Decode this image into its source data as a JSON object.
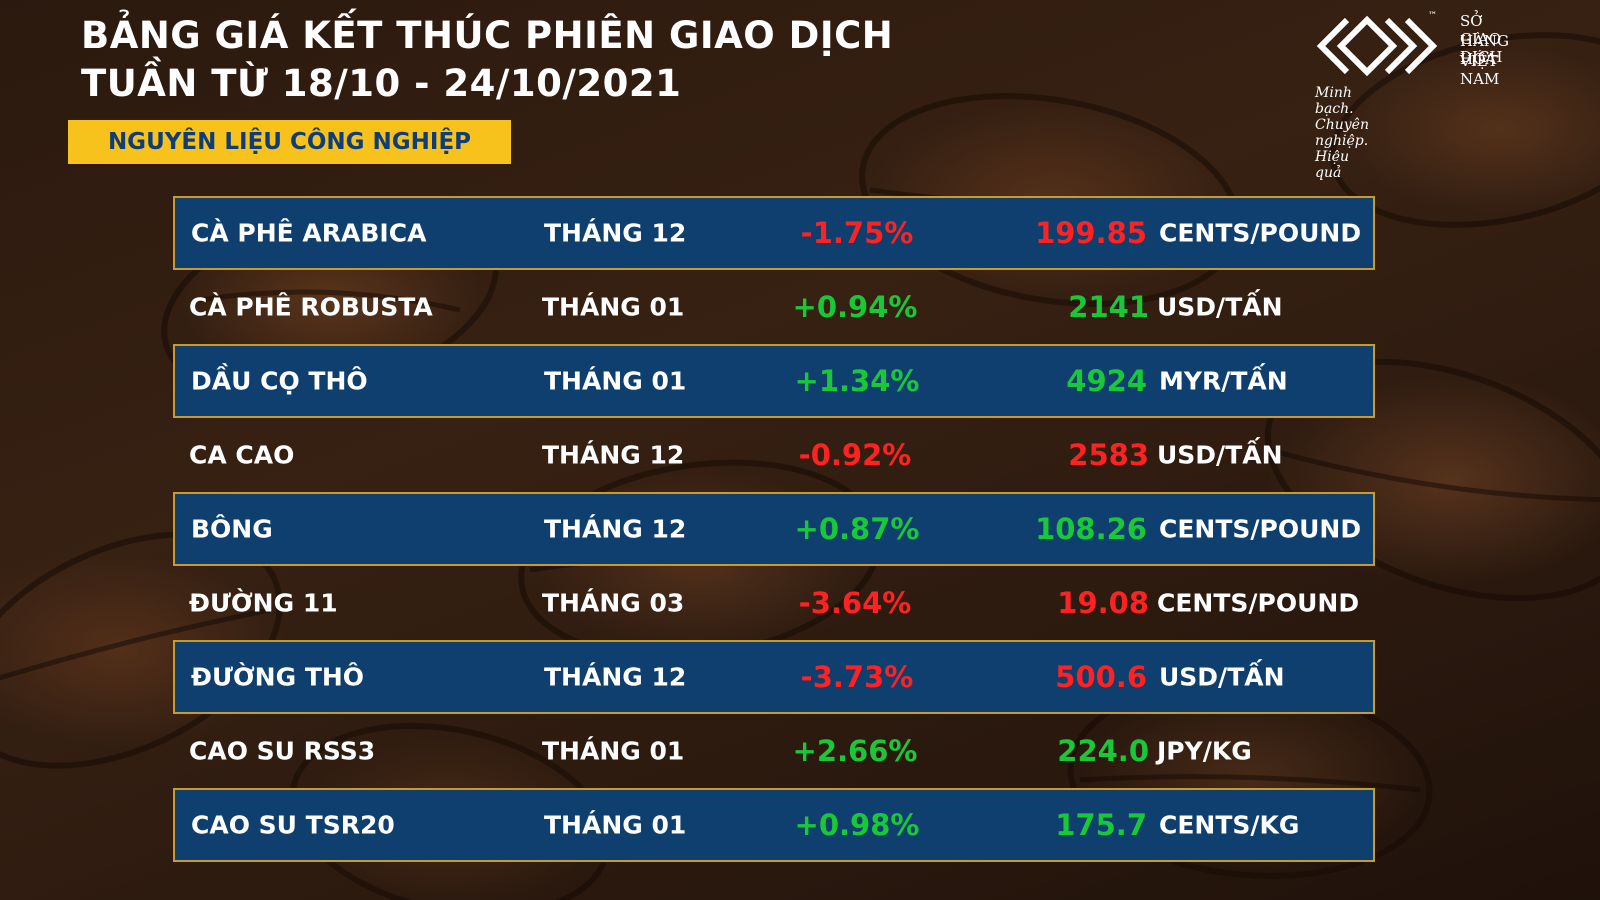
{
  "header": {
    "title_line1": "BẢNG GIÁ KẾT THÚC PHIÊN GIAO DỊCH",
    "title_line2": "TUẦN TỪ 18/10 - 24/10/2021",
    "category": "NGUYÊN LIỆU CÔNG NGHIỆP"
  },
  "logo": {
    "line1": "SỞ GIAO DỊCH",
    "line2": "HÀNG HÓA",
    "line3": "VIỆT NAM",
    "trademark": "™",
    "tagline": "Minh bạch. Chuyên nghiệp. Hiệu quả"
  },
  "table": {
    "rows": [
      [
        "CÀ PHÊ ARABICA",
        "THÁNG 12",
        "-1.75%",
        "199.85",
        "CENTS/POUND"
      ],
      [
        "CÀ PHÊ ROBUSTA",
        "THÁNG 01",
        "+0.94%",
        "2141",
        "USD/TẤN"
      ],
      [
        "DẦU CỌ THÔ",
        "THÁNG 01",
        "+1.34%",
        "4924",
        "MYR/TẤN"
      ],
      [
        "CA CAO",
        "THÁNG 12",
        "-0.92%",
        "2583",
        "USD/TẤN"
      ],
      [
        "BÔNG",
        "THÁNG 12",
        "+0.87%",
        "108.26",
        "CENTS/POUND"
      ],
      [
        "ĐƯỜNG 11",
        "THÁNG 03",
        "-3.64%",
        "19.08",
        "CENTS/POUND"
      ],
      [
        "ĐƯỜNG THÔ",
        "THÁNG 12",
        "-3.73%",
        "500.6",
        "USD/TẤN"
      ],
      [
        "CAO SU RSS3",
        "THÁNG 01",
        "+2.66%",
        "224.0",
        "JPY/KG"
      ],
      [
        "CAO SU TSR20",
        "THÁNG 01",
        "+0.98%",
        "175.7",
        "CENTS/KG"
      ]
    ]
  }
}
